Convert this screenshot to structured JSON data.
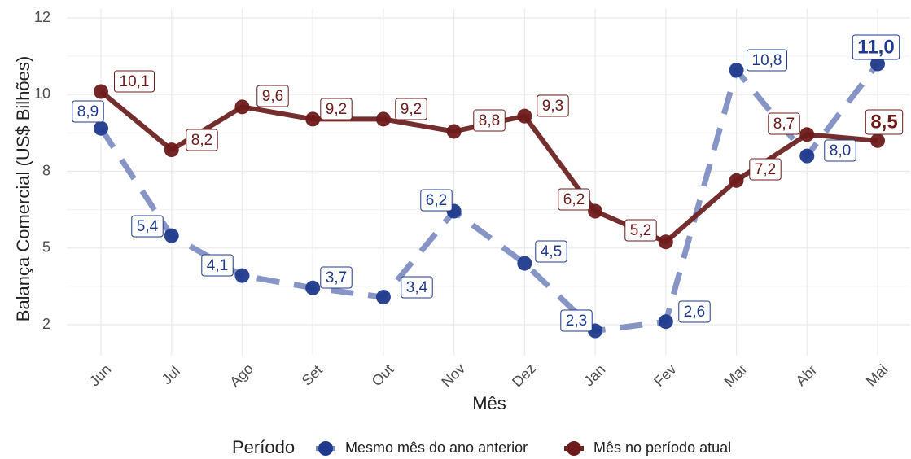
{
  "chart_data": {
    "type": "line",
    "y_label": "Balança Comercial (US$ Bilhões)",
    "x_label": "Mês",
    "legend_title": "Período",
    "categories": [
      "Jun",
      "Jul",
      "Ago",
      "Set",
      "Out",
      "Nov",
      "Dez",
      "Jan",
      "Fev",
      "Mar",
      "Abr",
      "Mai"
    ],
    "ylim": [
      1.5,
      12.8
    ],
    "yticks": [
      {
        "value": 2.5,
        "label": "2"
      },
      5,
      {
        "value": 7.5,
        "label": "8"
      },
      10,
      {
        "value": 12.5,
        "label": "12"
      }
    ],
    "grid": true,
    "legend_position": "bottom",
    "series": [
      {
        "name": "Mesmo mês do ano anterior",
        "color": "#1f3a8c",
        "line_color": "#7f8fc2",
        "dashed": true,
        "values": [
          8.9,
          5.4,
          4.1,
          3.7,
          3.4,
          6.2,
          4.5,
          2.3,
          2.6,
          10.8,
          8.0,
          11.0
        ],
        "value_labels": [
          "8,9",
          "5,4",
          "4,1",
          "3,7",
          "3,4",
          "6,2",
          "4,5",
          "2,3",
          "2,6",
          "10,8",
          "8,0",
          "11,0"
        ]
      },
      {
        "name": "Mês no período atual",
        "color": "#6e1a1a",
        "line_color": "#6e2323",
        "dashed": false,
        "values": [
          10.1,
          8.2,
          9.6,
          9.2,
          9.2,
          8.8,
          9.3,
          6.2,
          5.2,
          7.2,
          8.7,
          8.5
        ],
        "value_labels": [
          "10,1",
          "8,2",
          "9,6",
          "9,2",
          "9,2",
          "8,8",
          "9,3",
          "6,2",
          "5,2",
          "7,2",
          "8,7",
          "8,5"
        ]
      }
    ]
  }
}
